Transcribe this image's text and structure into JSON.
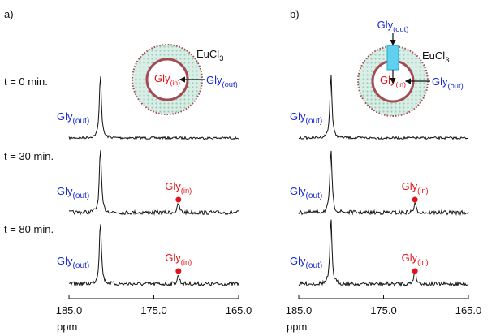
{
  "panels": [
    {
      "label": "a)",
      "diagram": {
        "salt": {
          "main": "EuCl",
          "sub": "3"
        },
        "inner": {
          "main": "Gly",
          "sub": "(in)"
        },
        "outer": {
          "main": "Gly",
          "sub": "(out)"
        }
      },
      "rows": [
        {
          "time": "t = 0 min.",
          "out_label": {
            "main": "Gly",
            "sub": "(out)"
          },
          "out_peak_ppm": 181.3
        },
        {
          "time": "t = 30 min.",
          "out_label": {
            "main": "Gly",
            "sub": "(out)"
          },
          "out_peak_ppm": 181.3,
          "in_label": {
            "main": "Gly",
            "sub": "(in)"
          },
          "in_peak_ppm": 172.1
        },
        {
          "time": "t = 80 min.",
          "out_label": {
            "main": "Gly",
            "sub": "(out)"
          },
          "out_peak_ppm": 181.3,
          "in_label": {
            "main": "Gly",
            "sub": "(in)"
          },
          "in_peak_ppm": 172.1
        }
      ],
      "axis": {
        "xlim": [
          185,
          165
        ],
        "xticks": [
          {
            "value": 185,
            "label": "185.0"
          },
          {
            "value": 175,
            "label": "175.0"
          },
          {
            "value": 165,
            "label": "165.0"
          }
        ],
        "unit": "ppm"
      }
    },
    {
      "label": "b)",
      "diagram": {
        "top": {
          "main": "Gly",
          "sub": "(out)"
        },
        "salt": {
          "main": "EuCl",
          "sub": "3"
        },
        "inner": {
          "main": "Gly",
          "sub": "(in)"
        },
        "outer": {
          "main": "Gly",
          "sub": "(out)"
        }
      },
      "rows": [
        {
          "out_label": {
            "main": "Gly",
            "sub": "(out)"
          },
          "out_peak_ppm": 181.2
        },
        {
          "out_label": {
            "main": "Gly",
            "sub": "(out)"
          },
          "out_peak_ppm": 181.2,
          "in_label": {
            "main": "Gly",
            "sub": "(in)"
          },
          "in_peak_ppm": 171.3
        },
        {
          "out_label": {
            "main": "Gly",
            "sub": "(out)"
          },
          "out_peak_ppm": 181.2,
          "in_label": {
            "main": "Gly",
            "sub": "(in)"
          },
          "in_peak_ppm": 171.3
        }
      ],
      "axis": {
        "xlim": [
          185,
          165
        ],
        "xticks": [
          {
            "value": 185,
            "label": "185.0"
          },
          {
            "value": 175,
            "label": "175.0"
          },
          {
            "value": 165,
            "label": "165.0"
          }
        ],
        "unit": "ppm"
      }
    }
  ]
}
